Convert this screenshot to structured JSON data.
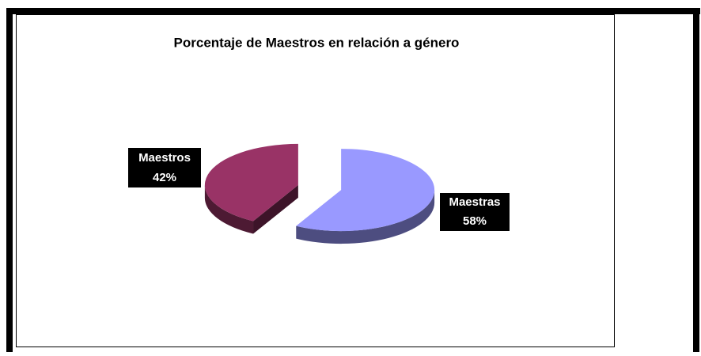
{
  "chart_data": {
    "type": "pie",
    "title": "Porcentaje de Maestros  en relación a género",
    "categories": [
      "Maestras",
      "Maestros"
    ],
    "values": [
      58,
      42
    ],
    "value_labels": [
      "58%",
      "42%"
    ],
    "colors": [
      "#9999ff",
      "#993366"
    ],
    "three_d": true,
    "exploded": true
  }
}
